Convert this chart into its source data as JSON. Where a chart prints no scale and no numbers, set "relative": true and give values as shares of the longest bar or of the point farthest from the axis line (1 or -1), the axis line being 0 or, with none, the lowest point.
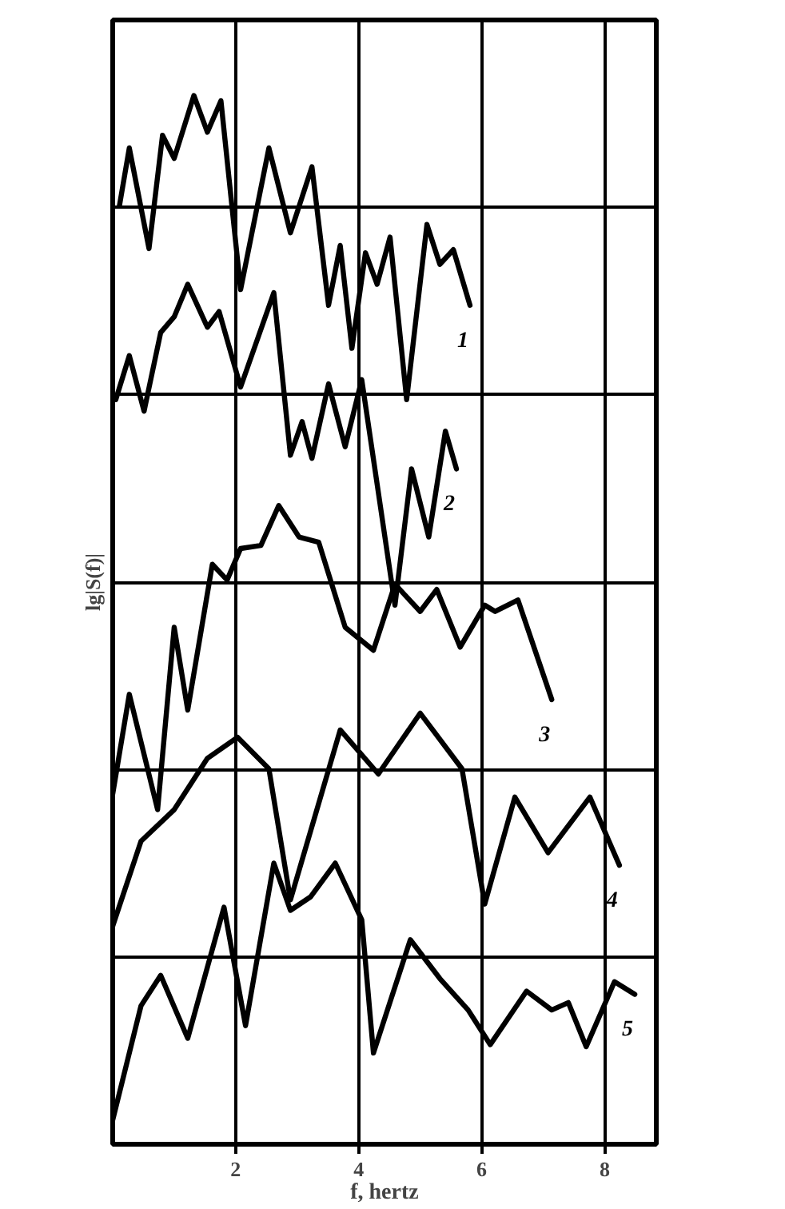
{
  "chart_data": {
    "type": "line",
    "relative": true,
    "xlabel": "f, hertz",
    "ylabel": "lg|S(f)|",
    "xlim": [
      0,
      8.84
    ],
    "xticks": [
      2,
      4,
      6,
      8
    ],
    "grid": true,
    "line_style": "solid",
    "series": [
      {
        "name": "1",
        "color": "#000000",
        "x": [
          0.11,
          0.27,
          0.59,
          0.81,
          1.0,
          1.32,
          1.54,
          1.76,
          2.08,
          2.54,
          2.89,
          3.24,
          3.51,
          3.7,
          3.89,
          4.11,
          4.3,
          4.51,
          4.78,
          5.11,
          5.32,
          5.54,
          5.81
        ],
        "values": [
          0.895,
          0.95,
          0.854,
          0.962,
          0.94,
          1.0,
          0.965,
          0.995,
          0.815,
          0.95,
          0.869,
          0.932,
          0.8,
          0.857,
          0.759,
          0.85,
          0.82,
          0.865,
          0.71,
          0.877,
          0.839,
          0.853,
          0.8
        ]
      },
      {
        "name": "2",
        "color": "#000000",
        "x": [
          0.05,
          0.27,
          0.51,
          0.78,
          1.0,
          1.22,
          1.54,
          1.73,
          2.08,
          2.62,
          2.89,
          3.08,
          3.24,
          3.51,
          3.78,
          4.05,
          4.59,
          4.86,
          5.14,
          5.41,
          5.59
        ],
        "values": [
          0.71,
          0.752,
          0.699,
          0.774,
          0.789,
          0.82,
          0.779,
          0.794,
          0.722,
          0.812,
          0.657,
          0.689,
          0.654,
          0.725,
          0.665,
          0.729,
          0.514,
          0.644,
          0.579,
          0.68,
          0.644
        ]
      },
      {
        "name": "3",
        "color": "#000000",
        "x": [
          0.0,
          0.27,
          0.73,
          1.0,
          1.22,
          1.62,
          1.86,
          2.08,
          2.41,
          2.7,
          3.03,
          3.35,
          3.78,
          4.24,
          4.59,
          5.0,
          5.27,
          5.65,
          6.05,
          6.22,
          6.59,
          7.14
        ],
        "values": [
          0.334,
          0.429,
          0.319,
          0.493,
          0.414,
          0.553,
          0.538,
          0.568,
          0.571,
          0.609,
          0.579,
          0.574,
          0.493,
          0.471,
          0.534,
          0.508,
          0.529,
          0.474,
          0.514,
          0.508,
          0.519,
          0.424
        ]
      },
      {
        "name": "4",
        "color": "#000000",
        "x": [
          0.0,
          0.46,
          1.0,
          1.54,
          2.03,
          2.54,
          2.89,
          3.7,
          4.32,
          5.0,
          5.68,
          6.05,
          6.54,
          7.08,
          7.76,
          8.24
        ],
        "values": [
          0.208,
          0.289,
          0.319,
          0.368,
          0.388,
          0.358,
          0.233,
          0.395,
          0.353,
          0.411,
          0.358,
          0.229,
          0.331,
          0.278,
          0.331,
          0.266
        ]
      },
      {
        "name": "5",
        "color": "#000000",
        "x": [
          0.0,
          0.46,
          0.78,
          1.22,
          1.81,
          2.16,
          2.62,
          2.89,
          3.22,
          3.62,
          4.05,
          4.24,
          4.84,
          5.32,
          5.78,
          6.14,
          6.73,
          7.14,
          7.41,
          7.7,
          8.16,
          8.49
        ],
        "values": [
          0.023,
          0.132,
          0.161,
          0.101,
          0.226,
          0.113,
          0.268,
          0.223,
          0.236,
          0.268,
          0.214,
          0.087,
          0.195,
          0.158,
          0.128,
          0.095,
          0.146,
          0.128,
          0.135,
          0.093,
          0.155,
          0.143
        ]
      }
    ]
  }
}
